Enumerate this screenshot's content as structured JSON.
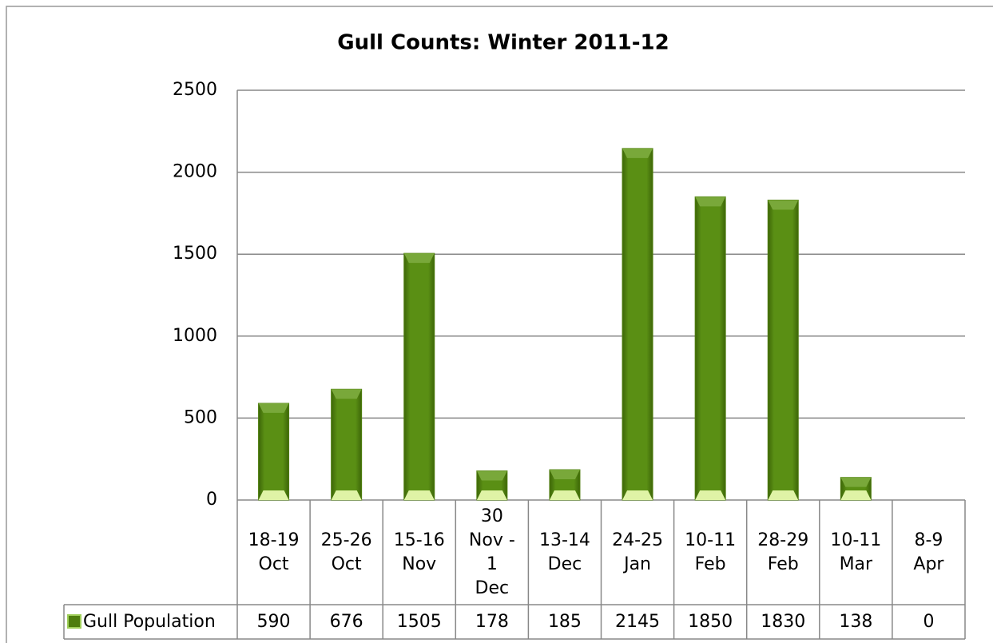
{
  "chart_data": {
    "type": "bar",
    "title": "Gull Counts: Winter 2011-12",
    "categories": [
      "18-19\nOct",
      "25-26\nOct",
      "15-16\nNov",
      "30\nNov -\n1\nDec",
      "13-14\nDec",
      "24-25\nJan",
      "10-11\nFeb",
      "28-29\nFeb",
      "10-11\nMar",
      "8-9\nApr"
    ],
    "series": [
      {
        "name": "Gull Population",
        "color": "#4e7d0e",
        "values": [
          590,
          676,
          1505,
          178,
          185,
          2145,
          1850,
          1830,
          138,
          0
        ]
      }
    ],
    "ylim": [
      0,
      2500
    ],
    "yticks": [
      0,
      500,
      1000,
      1500,
      2000,
      2500
    ],
    "grid": true,
    "data_table": true
  }
}
